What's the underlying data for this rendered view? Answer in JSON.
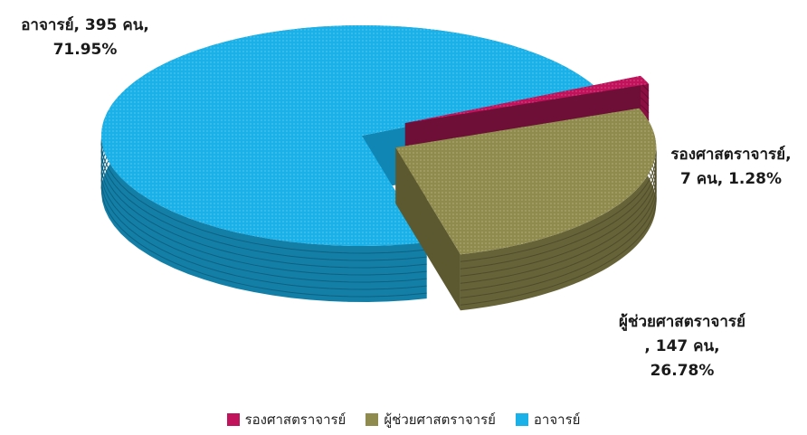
{
  "chart_data": {
    "type": "pie",
    "title": "",
    "slices": [
      {
        "name": "อาจารย์",
        "count": 395,
        "count_label": "395 คน",
        "percent": 71.95,
        "percent_label": "71.95%",
        "color": "#1ab0e8"
      },
      {
        "name": "รองศาสตราจารย์",
        "count": 7,
        "count_label": "7 คน",
        "percent": 1.28,
        "percent_label": "1.28%",
        "color": "#c0135c"
      },
      {
        "name": "ผู้ช่วยศาสตราจารย์",
        "count": 147,
        "count_label": "147 คน",
        "percent": 26.78,
        "percent_label": "26.78%",
        "color": "#8f8a4e"
      }
    ],
    "legend": {
      "position": "bottom",
      "items": [
        "รองศาสตราจารย์",
        "ผู้ช่วยศาสตราจารย์",
        "อาจารย์"
      ]
    },
    "style": "3d-exploded"
  },
  "labels": {
    "ajarn": {
      "line1": "อาจารย์, 395 คน,",
      "line2": "71.95%"
    },
    "rong": {
      "line1": "รองศาสตราจารย์,",
      "line2": "7 คน, 1.28%"
    },
    "phuchuay": {
      "line1": "ผู้ช่วยศาสตราจารย์",
      "line2": ", 147 คน,",
      "line3": "26.78%"
    }
  },
  "legend_labels": {
    "rong": "รองศาสตราจารย์",
    "phuchuay": "ผู้ช่วยศาสตราจารย์",
    "ajarn": "อาจารย์"
  },
  "colors": {
    "ajarn": "#1ab0e8",
    "rong": "#c0135c",
    "phuchuay": "#8f8a4e"
  }
}
